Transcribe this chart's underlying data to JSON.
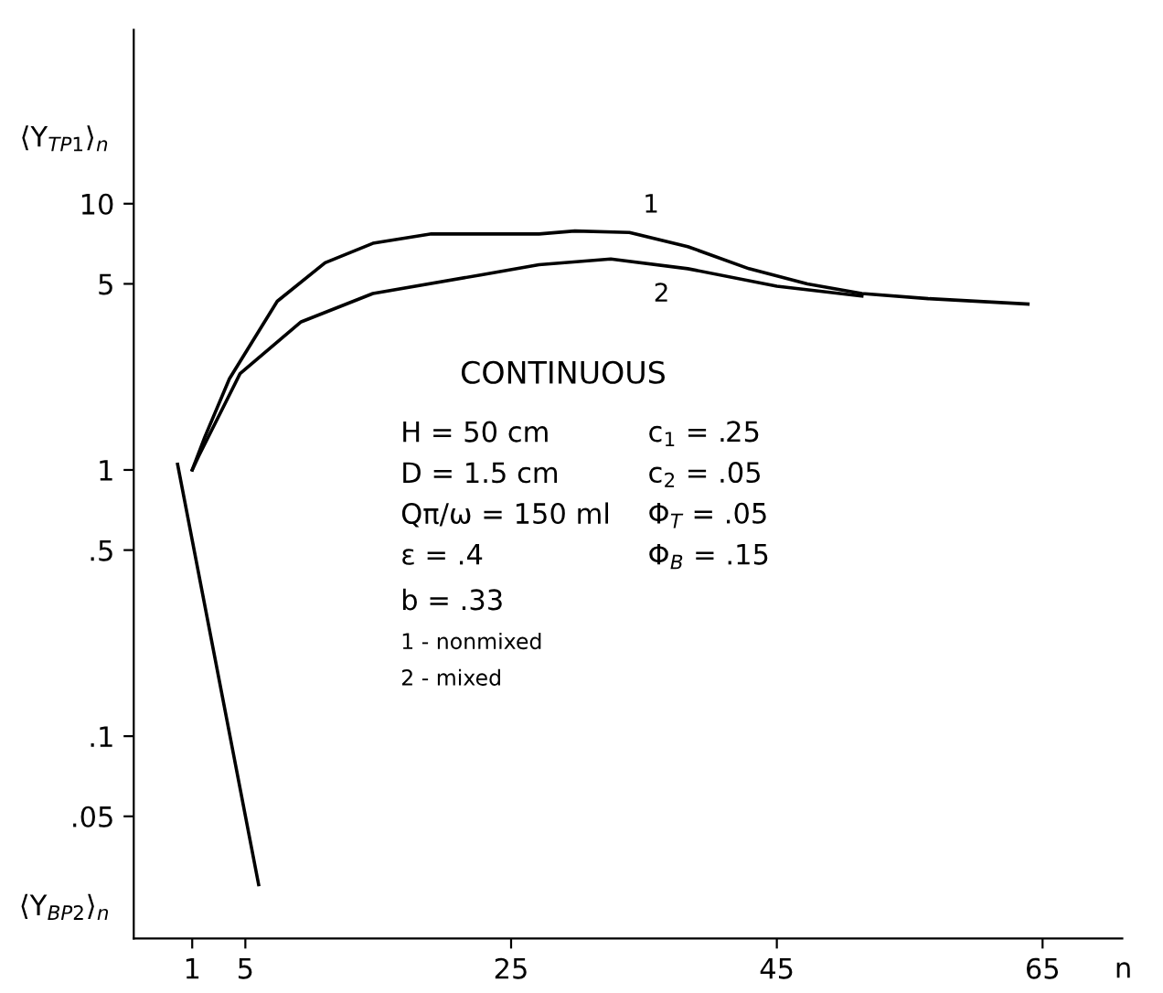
{
  "chart_data": {
    "type": "line",
    "xlabel": "n",
    "ylabel": "⟨Y$_{TP1}$⟩$_{n}$",
    "series": [
      {
        "name": "1",
        "color": "#000000",
        "x": [
          1,
          1.95,
          3.8,
          7.4,
          11,
          14.6,
          19,
          27.1,
          29.8,
          33.9,
          38.3,
          42.9,
          47.3,
          51.4,
          56.4,
          63.9
        ],
        "values": [
          1,
          1.33,
          2.2,
          4.3,
          6.0,
          7.1,
          7.7,
          7.7,
          7.9,
          7.8,
          6.9,
          5.7,
          5.0,
          4.6,
          4.4,
          4.2
        ]
      },
      {
        "name": "2",
        "color": "#000000",
        "x": [
          1,
          1.5,
          4.6,
          9.2,
          14.6,
          22.7,
          27.1,
          32.5,
          38.3,
          45,
          51.4
        ],
        "values": [
          1,
          1.13,
          2.3,
          3.6,
          4.6,
          5.4,
          5.9,
          6.2,
          5.7,
          4.9,
          4.5
        ]
      },
      {
        "color": "#000000",
        "x": [
          -0.1,
          6.0
        ],
        "values": [
          1.05,
          0.0277
        ]
      }
    ],
    "log": "y",
    "xlim": [
      -3.4,
      71
    ],
    "ylim": [
      0.0174,
      45
    ],
    "xticks": [
      1,
      5,
      25,
      45,
      65
    ],
    "yticks": [
      {
        "value": 0.05,
        "label": ".05"
      },
      {
        "value": 0.1,
        "label": ".1"
      },
      {
        "value": 0.5,
        "label": ".5"
      },
      1,
      5,
      10
    ],
    "grid": false,
    "legend": false,
    "marker": "none",
    "line_style": "solid",
    "annotations": [
      "⟨Y$_{BP2}$⟩$_{n}$",
      "CONTINUOUS",
      "H = 50 cm",
      "D = 1.5 cm",
      "Qπ/ω = 150 ml",
      "ε = .4",
      "b = .33",
      "1 - nonmixed",
      "2 - mixed",
      "c$_{1}$ = .25",
      "c$_{2}$ = .05",
      "Φ$_{T}$ = .05",
      "Φ$_{B}$ = .15"
    ]
  }
}
